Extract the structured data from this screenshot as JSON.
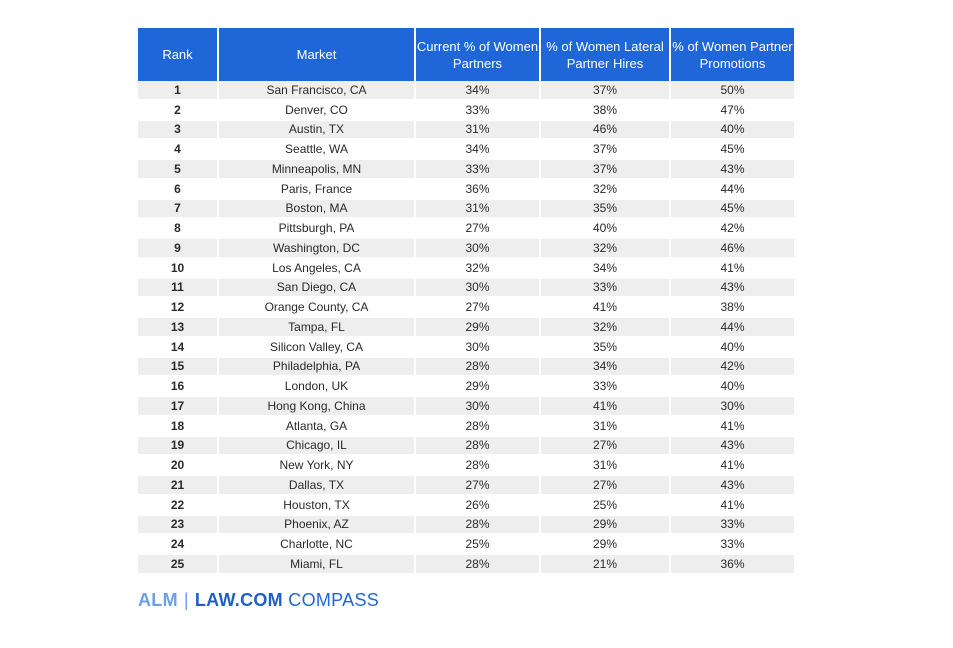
{
  "chart_data": {
    "type": "table",
    "columns": [
      "Rank",
      "Market",
      "Current % of Women Partners",
      "% of Women Lateral Partner Hires",
      "% of Women Partner Promotions"
    ],
    "rows": [
      [
        "1",
        "San Francisco, CA",
        "34%",
        "37%",
        "50%"
      ],
      [
        "2",
        "Denver, CO",
        "33%",
        "38%",
        "47%"
      ],
      [
        "3",
        "Austin, TX",
        "31%",
        "46%",
        "40%"
      ],
      [
        "4",
        "Seattle, WA",
        "34%",
        "37%",
        "45%"
      ],
      [
        "5",
        "Minneapolis, MN",
        "33%",
        "37%",
        "43%"
      ],
      [
        "6",
        "Paris, France",
        "36%",
        "32%",
        "44%"
      ],
      [
        "7",
        "Boston, MA",
        "31%",
        "35%",
        "45%"
      ],
      [
        "8",
        "Pittsburgh, PA",
        "27%",
        "40%",
        "42%"
      ],
      [
        "9",
        "Washington, DC",
        "30%",
        "32%",
        "46%"
      ],
      [
        "10",
        "Los Angeles, CA",
        "32%",
        "34%",
        "41%"
      ],
      [
        "11",
        "San Diego, CA",
        "30%",
        "33%",
        "43%"
      ],
      [
        "12",
        "Orange County, CA",
        "27%",
        "41%",
        "38%"
      ],
      [
        "13",
        "Tampa, FL",
        "29%",
        "32%",
        "44%"
      ],
      [
        "14",
        "Silicon Valley, CA",
        "30%",
        "35%",
        "40%"
      ],
      [
        "15",
        "Philadelphia, PA",
        "28%",
        "34%",
        "42%"
      ],
      [
        "16",
        "London, UK",
        "29%",
        "33%",
        "40%"
      ],
      [
        "17",
        "Hong Kong, China",
        "30%",
        "41%",
        "30%"
      ],
      [
        "18",
        "Atlanta, GA",
        "28%",
        "31%",
        "41%"
      ],
      [
        "19",
        "Chicago, IL",
        "28%",
        "27%",
        "43%"
      ],
      [
        "20",
        "New York, NY",
        "28%",
        "31%",
        "41%"
      ],
      [
        "21",
        "Dallas, TX",
        "27%",
        "27%",
        "43%"
      ],
      [
        "22",
        "Houston, TX",
        "26%",
        "25%",
        "41%"
      ],
      [
        "23",
        "Phoenix, AZ",
        "28%",
        "29%",
        "33%"
      ],
      [
        "24",
        "Charlotte, NC",
        "25%",
        "29%",
        "33%"
      ],
      [
        "25",
        "Miami, FL",
        "28%",
        "21%",
        "36%"
      ]
    ]
  },
  "logo": {
    "alm": "ALM",
    "separator": "|",
    "law": "LAW.COM",
    "compass": "COMPASS"
  },
  "colors": {
    "header_bg": "#1f67d8",
    "stripe": "#eeeeee",
    "brand": "#1f67d8"
  }
}
